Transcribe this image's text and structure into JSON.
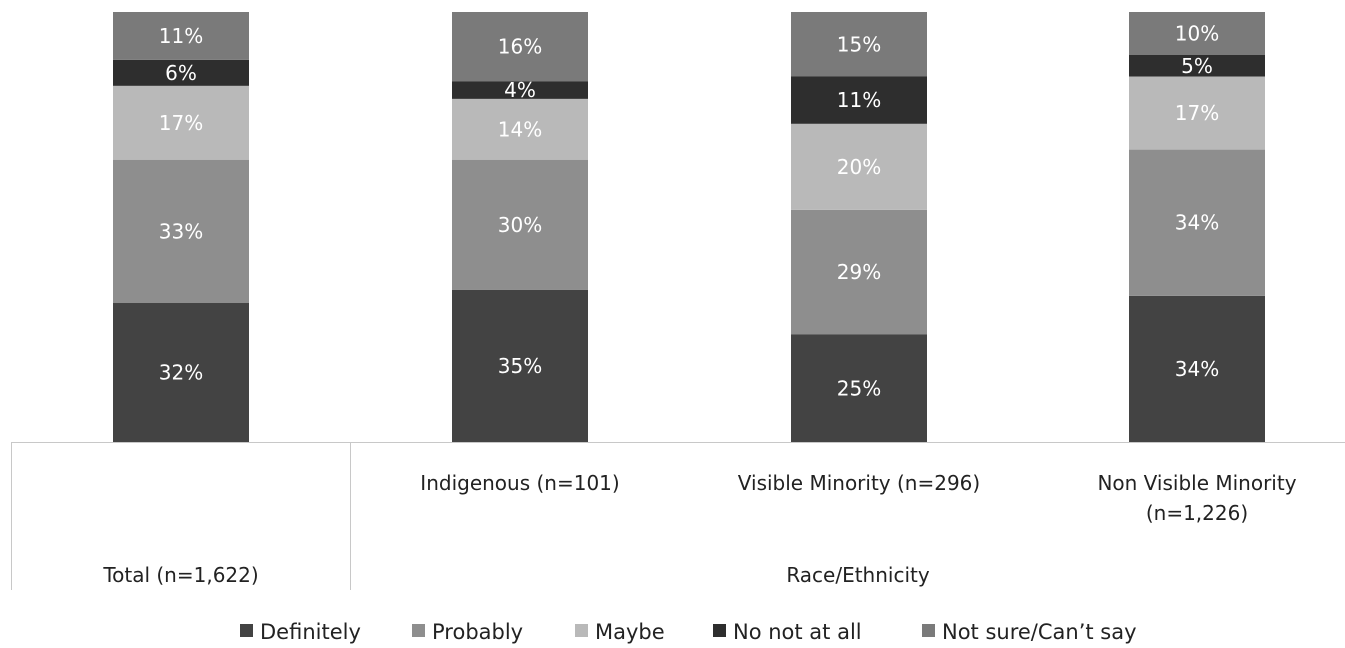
{
  "chart_data": {
    "type": "bar",
    "stacked": true,
    "categories": [
      "Total (n=1,622)",
      "Indigenous (n=101)",
      "Visible Minority (n=296)",
      "Non Visible Minority (n=1,226)"
    ],
    "group_label": "Race/Ethnicity",
    "series": [
      {
        "name": "Definitely",
        "color": "#434343",
        "values": [
          32,
          35,
          25,
          34
        ]
      },
      {
        "name": "Probably",
        "color": "#8e8e8e",
        "values": [
          33,
          30,
          29,
          34
        ]
      },
      {
        "name": "Maybe",
        "color": "#b9b9b9",
        "values": [
          17,
          14,
          20,
          17
        ]
      },
      {
        "name": "No not at all",
        "color": "#2e2e2e",
        "values": [
          6,
          4,
          11,
          5
        ]
      },
      {
        "name": "Not sure/Can’t say",
        "color": "#7a7a7a",
        "values": [
          11,
          16,
          15,
          10
        ]
      }
    ],
    "data_labels": [
      [
        "32%",
        "35%",
        "25%",
        "34%"
      ],
      [
        "33%",
        "30%",
        "29%",
        "34%"
      ],
      [
        "17%",
        "14%",
        "20%",
        "17%"
      ],
      [
        "6%",
        "4%",
        "11%",
        "5%"
      ],
      [
        "11%",
        "16%",
        "15%",
        "10%"
      ]
    ],
    "ylim": [
      0,
      100
    ],
    "legend_position": "bottom",
    "grid": false
  }
}
